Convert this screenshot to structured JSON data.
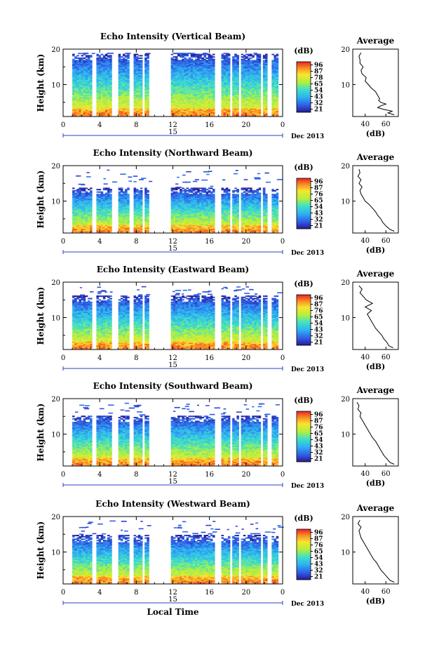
{
  "chart_data": [
    {
      "type": "heatmap",
      "title": "Echo Intensity (Vertical Beam)",
      "ylabel": "Height (km)",
      "y_ticks": [
        "20",
        "10"
      ],
      "x_ticks": [
        "0",
        "4",
        "8",
        "12",
        "16",
        "20",
        "0"
      ],
      "date_mark": "15",
      "date_label": "Dec 2013",
      "colorbar_unit": "(dB)",
      "colorbar_ticks": [
        "96",
        "87",
        "78",
        "65",
        "54",
        "43",
        "32",
        "21"
      ],
      "top_km": 18.6,
      "profile": {
        "title": "Average",
        "xlabel": "(dB)",
        "x_ticks": [
          "40",
          "60"
        ],
        "y_ticks": [
          "20",
          "10"
        ],
        "height": [
          1.5,
          2,
          2.5,
          3,
          3.5,
          4,
          4.5,
          5,
          5.5,
          6,
          7,
          8,
          9,
          10,
          11,
          12,
          13,
          14,
          15,
          16,
          17,
          18,
          19
        ],
        "value": [
          68,
          62,
          66,
          58,
          52,
          55,
          60,
          55,
          53,
          54,
          52,
          50,
          46,
          43,
          40,
          41,
          37,
          36,
          38,
          35,
          35,
          34,
          36
        ]
      }
    },
    {
      "type": "heatmap",
      "title": "Echo Intensity (Northward Beam)",
      "ylabel": "Height (km)",
      "y_ticks": [
        "20",
        "10"
      ],
      "x_ticks": [
        "0",
        "4",
        "8",
        "12",
        "16",
        "20",
        "0"
      ],
      "date_mark": "15",
      "date_label": "Dec 2013",
      "colorbar_unit": "(dB)",
      "colorbar_ticks": [
        "96",
        "87",
        "76",
        "65",
        "54",
        "43",
        "32",
        "21"
      ],
      "top_km": 13.5,
      "profile": {
        "title": "Average",
        "xlabel": "(dB)",
        "x_ticks": [
          "40",
          "60"
        ],
        "y_ticks": [
          "20",
          "10"
        ],
        "height": [
          1.5,
          2,
          3,
          4,
          5,
          6,
          7,
          8,
          9,
          10,
          11,
          12,
          13,
          14,
          15,
          16,
          17,
          18,
          19
        ],
        "value": [
          68,
          64,
          60,
          57,
          55,
          52,
          50,
          47,
          44,
          40,
          38,
          36,
          35,
          37,
          34,
          36,
          33,
          35,
          34
        ]
      }
    },
    {
      "type": "heatmap",
      "title": "Echo Intensity (Eastward Beam)",
      "ylabel": "Height (km)",
      "y_ticks": [
        "20",
        "10"
      ],
      "x_ticks": [
        "0",
        "4",
        "8",
        "12",
        "16",
        "20",
        "0"
      ],
      "date_mark": "15",
      "date_label": "Dec 2013",
      "colorbar_unit": "(dB)",
      "colorbar_ticks": [
        "96",
        "87",
        "76",
        "65",
        "54",
        "43",
        "32",
        "21"
      ],
      "top_km": 16,
      "profile": {
        "title": "Average",
        "xlabel": "(dB)",
        "x_ticks": [
          "40",
          "60"
        ],
        "y_ticks": [
          "20",
          "10"
        ],
        "height": [
          1.5,
          2,
          3,
          4,
          5,
          6,
          7,
          8,
          9,
          10,
          11,
          12,
          13,
          14,
          15,
          16,
          17,
          18,
          19
        ],
        "value": [
          67,
          63,
          61,
          58,
          56,
          53,
          50,
          48,
          46,
          44,
          42,
          46,
          40,
          47,
          41,
          38,
          35,
          37,
          34
        ]
      }
    },
    {
      "type": "heatmap",
      "title": "Echo Intensity (Southward Beam)",
      "ylabel": "Height (km)",
      "y_ticks": [
        "20",
        "10"
      ],
      "x_ticks": [
        "0",
        "4",
        "8",
        "12",
        "16",
        "20",
        "0"
      ],
      "date_mark": "15",
      "date_label": "Dec 2013",
      "colorbar_unit": "(dB)",
      "colorbar_ticks": [
        "96",
        "87",
        "76",
        "65",
        "54",
        "43",
        "32",
        "21"
      ],
      "top_km": 15,
      "profile": {
        "title": "Average",
        "xlabel": "(dB)",
        "x_ticks": [
          "40",
          "60"
        ],
        "y_ticks": [
          "20",
          "10"
        ],
        "height": [
          1.5,
          2,
          3,
          4,
          5,
          6,
          7,
          8,
          9,
          10,
          11,
          12,
          13,
          14,
          15,
          16,
          17,
          18,
          19
        ],
        "value": [
          68,
          64,
          61,
          58,
          56,
          54,
          52,
          50,
          47,
          45,
          43,
          41,
          39,
          37,
          35,
          36,
          33,
          34,
          32
        ]
      }
    },
    {
      "type": "heatmap",
      "title": "Echo Intensity (Westward Beam)",
      "ylabel": "Height (km)",
      "y_ticks": [
        "20",
        "10"
      ],
      "x_ticks": [
        "0",
        "4",
        "8",
        "12",
        "16",
        "20",
        "0"
      ],
      "date_mark": "15",
      "date_label": "Dec 2013",
      "xlabel": "Local Time",
      "colorbar_unit": "(dB)",
      "colorbar_ticks": [
        "96",
        "87",
        "76",
        "65",
        "54",
        "43",
        "32",
        "21"
      ],
      "top_km": 14.5,
      "profile": {
        "title": "Average",
        "xlabel": "(dB)",
        "x_ticks": [
          "40",
          "60"
        ],
        "y_ticks": [
          "20",
          "10"
        ],
        "height": [
          1.5,
          2,
          3,
          4,
          5,
          6,
          7,
          8,
          9,
          10,
          11,
          12,
          13,
          14,
          15,
          16,
          17,
          18,
          19
        ],
        "value": [
          68,
          64,
          61,
          58,
          55,
          53,
          51,
          48,
          46,
          44,
          42,
          40,
          38,
          36,
          35,
          34,
          36,
          33,
          35
        ]
      }
    }
  ],
  "data_gaps_hours": [
    [
      3.2,
      3.6
    ],
    [
      5.4,
      6.0
    ],
    [
      7.2,
      7.6
    ],
    [
      8.6,
      8.9
    ],
    [
      9.4,
      11.9
    ],
    [
      16.6,
      17.2
    ],
    [
      18.2,
      18.6
    ],
    [
      19.2,
      19.5
    ],
    [
      21.6,
      21.9
    ],
    [
      22.4,
      22.7
    ],
    [
      23.6,
      24.0
    ]
  ]
}
